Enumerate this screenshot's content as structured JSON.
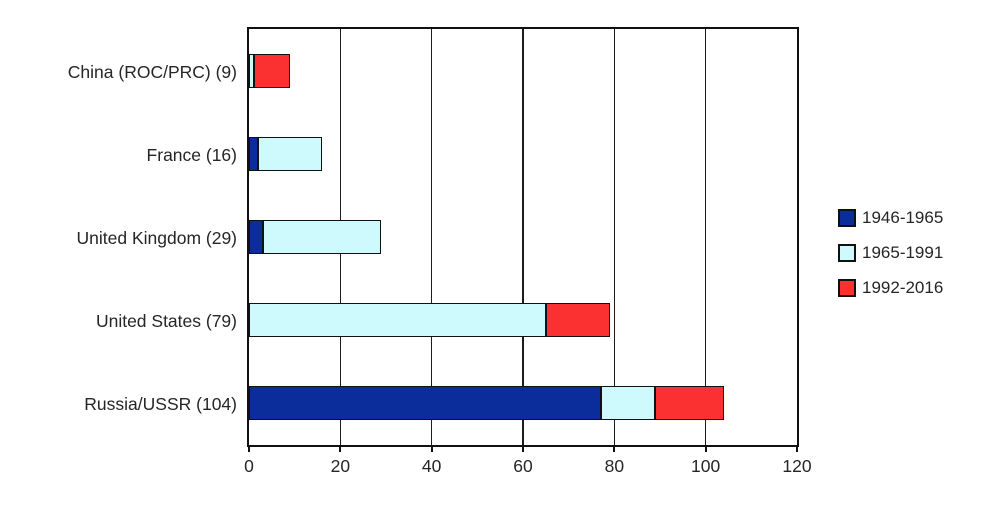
{
  "chart_data": {
    "type": "bar",
    "orientation": "horizontal",
    "stacked": true,
    "title": "",
    "categories": [
      "China (ROC/PRC) (9)",
      "France (16)",
      "United Kingdom (29)",
      "United States (79)",
      "Russia/USSR (104)"
    ],
    "totals": [
      9,
      16,
      29,
      79,
      104
    ],
    "series": [
      {
        "name": "1946-1965",
        "color": "#0b2d9b",
        "values": [
          0,
          2,
          3,
          0,
          77
        ]
      },
      {
        "name": "1965-1991",
        "color": "#cffafd",
        "values": [
          1,
          14,
          26,
          65,
          12
        ]
      },
      {
        "name": "1992-2016",
        "color": "#fb3030",
        "values": [
          8,
          0,
          0,
          14,
          15
        ]
      }
    ],
    "xlim": [
      0,
      120
    ],
    "x_ticks": [
      0,
      20,
      40,
      60,
      80,
      100,
      120
    ],
    "grid": true,
    "legend_position": "right",
    "colors": {
      "axis": "#111111",
      "gridline": "#1c1c1c",
      "text": "#262626",
      "background": "#ffffff"
    }
  }
}
